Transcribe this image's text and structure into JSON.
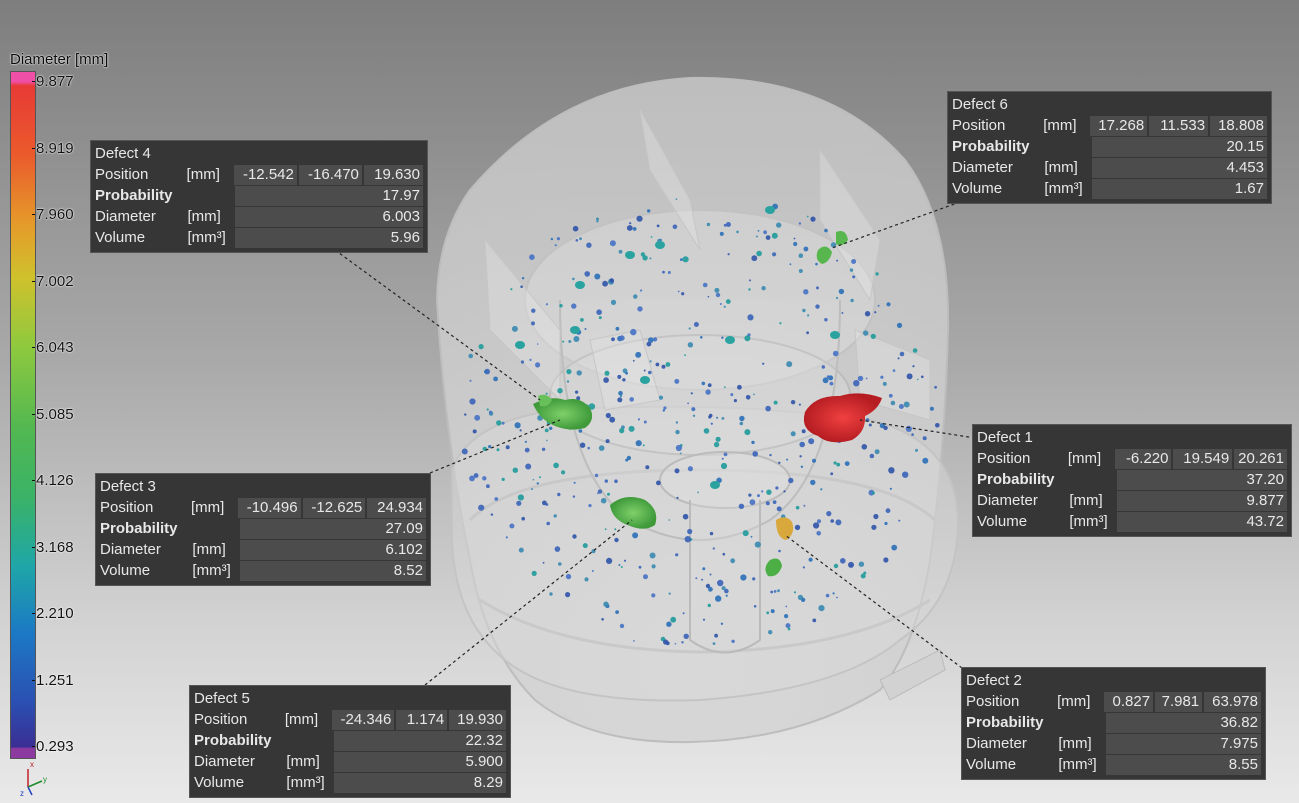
{
  "legend": {
    "title": "Diameter [mm]",
    "ticks": [
      "9.877",
      "8.919",
      "7.960",
      "7.002",
      "6.043",
      "5.085",
      "4.126",
      "3.168",
      "2.210",
      "1.251",
      "0.293"
    ]
  },
  "axes": {
    "x_label": "x",
    "y_label": "y",
    "z_label": "z"
  },
  "colors": {
    "panel_bg": "#363636",
    "value_bg": "#4c4c4c",
    "defect_red": "#d8262a",
    "defect_green": "#4caf45",
    "defect_orange": "#d9a23a",
    "pore_blue": "#3a63b8"
  },
  "defects": [
    {
      "title": "Defect 4",
      "position_label": "Position",
      "position_unit": "[mm]",
      "position": [
        "-12.542",
        "-16.470",
        "19.630"
      ],
      "probability_label": "Probability",
      "probability": "17.97",
      "diameter_label": "Diameter",
      "diameter_unit": "[mm]",
      "diameter": "6.003",
      "volume_label": "Volume",
      "volume_unit": "[mm³]",
      "volume": "5.96"
    },
    {
      "title": "Defect 6",
      "position_label": "Position",
      "position_unit": "[mm]",
      "position": [
        "17.268",
        "11.533",
        "18.808"
      ],
      "probability_label": "Probability",
      "probability": "20.15",
      "diameter_label": "Diameter",
      "diameter_unit": "[mm]",
      "diameter": "4.453",
      "volume_label": "Volume",
      "volume_unit": "[mm³]",
      "volume": "1.67"
    },
    {
      "title": "Defect 1",
      "position_label": "Position",
      "position_unit": "[mm]",
      "position": [
        "-6.220",
        "19.549",
        "20.261"
      ],
      "probability_label": "Probability",
      "probability": "37.20",
      "diameter_label": "Diameter",
      "diameter_unit": "[mm]",
      "diameter": "9.877",
      "volume_label": "Volume",
      "volume_unit": "[mm³]",
      "volume": "43.72"
    },
    {
      "title": "Defect 3",
      "position_label": "Position",
      "position_unit": "[mm]",
      "position": [
        "-10.496",
        "-12.625",
        "24.934"
      ],
      "probability_label": "Probability",
      "probability": "27.09",
      "diameter_label": "Diameter",
      "diameter_unit": "[mm]",
      "diameter": "6.102",
      "volume_label": "Volume",
      "volume_unit": "[mm³]",
      "volume": "8.52"
    },
    {
      "title": "Defect 5",
      "position_label": "Position",
      "position_unit": "[mm]",
      "position": [
        "-24.346",
        "1.174",
        "19.930"
      ],
      "probability_label": "Probability",
      "probability": "22.32",
      "diameter_label": "Diameter",
      "diameter_unit": "[mm]",
      "diameter": "5.900",
      "volume_label": "Volume",
      "volume_unit": "[mm³]",
      "volume": "8.29"
    },
    {
      "title": "Defect 2",
      "position_label": "Position",
      "position_unit": "[mm]",
      "position": [
        "0.827",
        "7.981",
        "63.978"
      ],
      "probability_label": "Probability",
      "probability": "36.82",
      "diameter_label": "Diameter",
      "diameter_unit": "[mm]",
      "diameter": "7.975",
      "volume_label": "Volume",
      "volume_unit": "[mm³]",
      "volume": "8.55"
    }
  ]
}
